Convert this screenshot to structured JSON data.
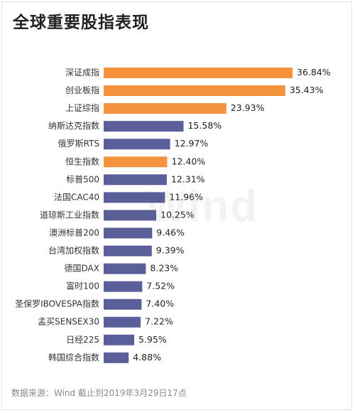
{
  "title": "全球重要股指表现",
  "source": "数据来源：Wind 截止到2019年3月29日17点",
  "watermark": "Wind",
  "colors": {
    "highlight": "#F5923E",
    "default": "#5A5F99",
    "label": "#333333"
  },
  "chart_data": {
    "type": "bar",
    "orientation": "horizontal",
    "categories": [
      "深证成指",
      "创业板指",
      "上证综指",
      "纳斯达克指数",
      "俄罗斯RTS",
      "恒生指数",
      "标普500",
      "法国CAC40",
      "道琼斯工业指数",
      "澳洲标普200",
      "台湾加权指数",
      "德国DAX",
      "富时100",
      "圣保罗IBOVESPA指数",
      "孟买SENSEX30",
      "日经225",
      "韩国综合指数"
    ],
    "values": [
      36.84,
      35.43,
      23.93,
      15.58,
      12.97,
      12.4,
      12.31,
      11.96,
      10.25,
      9.46,
      9.39,
      8.23,
      7.52,
      7.4,
      7.22,
      5.95,
      4.88
    ],
    "value_labels": [
      "36.84%",
      "35.43%",
      "23.93%",
      "15.58%",
      "12.97%",
      "12.40%",
      "12.31%",
      "11.96%",
      "10.25%",
      "9.46%",
      "9.39%",
      "8.23%",
      "7.52%",
      "7.40%",
      "7.22%",
      "5.95%",
      "4.88%"
    ],
    "highlighted": [
      true,
      true,
      true,
      false,
      false,
      true,
      false,
      false,
      false,
      false,
      false,
      false,
      false,
      false,
      false,
      false,
      false
    ],
    "xlim": [
      0,
      36.84
    ],
    "grid": false,
    "legend": "none"
  }
}
